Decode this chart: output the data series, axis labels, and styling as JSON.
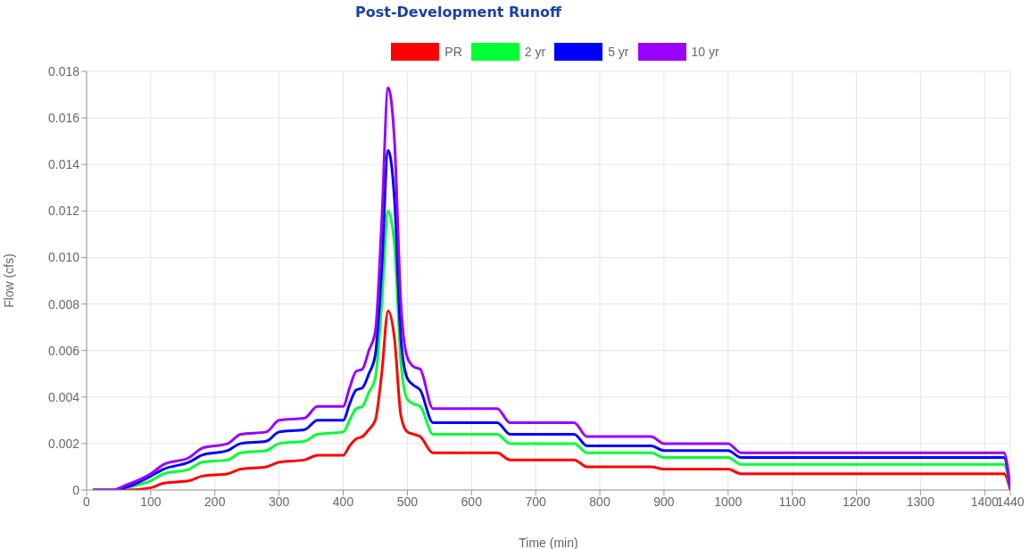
{
  "chart_data": {
    "type": "line",
    "title": "Post-Development Runoff",
    "xlabel": "Time (min)",
    "ylabel": "Flow (cfs)",
    "x": [
      10,
      40,
      60,
      100,
      120,
      160,
      180,
      220,
      240,
      280,
      300,
      340,
      360,
      400,
      410,
      420,
      430,
      440,
      450,
      460,
      470,
      480,
      490,
      500,
      510,
      520,
      540,
      640,
      660,
      760,
      780,
      880,
      900,
      1000,
      1020,
      1430,
      1440
    ],
    "series": [
      {
        "name": "PR",
        "color": "#ff0000",
        "values": [
          0,
          0,
          0,
          0.0001,
          0.0003,
          0.0004,
          0.0006,
          0.0007,
          0.0009,
          0.001,
          0.0012,
          0.0013,
          0.0015,
          0.0015,
          0.0019,
          0.0022,
          0.0023,
          0.0026,
          0.003,
          0.005,
          0.0077,
          0.0065,
          0.0032,
          0.0025,
          0.0024,
          0.0023,
          0.0016,
          0.0016,
          0.0013,
          0.0013,
          0.001,
          0.001,
          0.0009,
          0.0009,
          0.0007,
          0.0007,
          0
        ]
      },
      {
        "name": "2 yr",
        "color": "#00ff33",
        "values": [
          0,
          0,
          0.0001,
          0.0004,
          0.0007,
          0.0009,
          0.0012,
          0.0013,
          0.0016,
          0.0017,
          0.002,
          0.0021,
          0.0024,
          0.0025,
          0.003,
          0.0035,
          0.0036,
          0.0042,
          0.0048,
          0.008,
          0.012,
          0.0105,
          0.0055,
          0.0039,
          0.0037,
          0.0036,
          0.0024,
          0.0024,
          0.002,
          0.002,
          0.0016,
          0.0016,
          0.0014,
          0.0014,
          0.0011,
          0.0011,
          0
        ]
      },
      {
        "name": "5 yr",
        "color": "#0000ff",
        "values": [
          0,
          0,
          0.0001,
          0.0006,
          0.0009,
          0.0012,
          0.0015,
          0.0017,
          0.002,
          0.0021,
          0.0025,
          0.0026,
          0.003,
          0.003,
          0.0037,
          0.0043,
          0.0044,
          0.005,
          0.0058,
          0.0095,
          0.0146,
          0.0125,
          0.0065,
          0.0048,
          0.0045,
          0.0043,
          0.0029,
          0.0029,
          0.0024,
          0.0024,
          0.0019,
          0.0019,
          0.0017,
          0.0017,
          0.0014,
          0.0014,
          0
        ]
      },
      {
        "name": "10 yr",
        "color": "#9900ff",
        "values": [
          0,
          0,
          0.0002,
          0.0007,
          0.0011,
          0.0014,
          0.0018,
          0.002,
          0.0024,
          0.0025,
          0.003,
          0.0031,
          0.0036,
          0.0036,
          0.0044,
          0.0051,
          0.0052,
          0.006,
          0.0068,
          0.0115,
          0.0173,
          0.015,
          0.008,
          0.0057,
          0.0053,
          0.0052,
          0.0035,
          0.0035,
          0.0029,
          0.0029,
          0.0023,
          0.0023,
          0.002,
          0.002,
          0.0016,
          0.0016,
          0
        ]
      }
    ],
    "xlim": [
      0,
      1440
    ],
    "xticks": [
      0,
      100,
      200,
      300,
      400,
      500,
      600,
      700,
      800,
      900,
      1000,
      1100,
      1200,
      1300,
      1400,
      1440
    ],
    "ylim": [
      0,
      0.018
    ],
    "yticks": [
      0,
      0.002,
      0.004,
      0.006,
      0.008,
      {
        "value": 0.01,
        "label": "0.010"
      },
      0.012,
      0.014,
      0.016,
      0.018
    ],
    "grid": true,
    "legend": "top",
    "marker": "none",
    "line_style": "solid"
  }
}
